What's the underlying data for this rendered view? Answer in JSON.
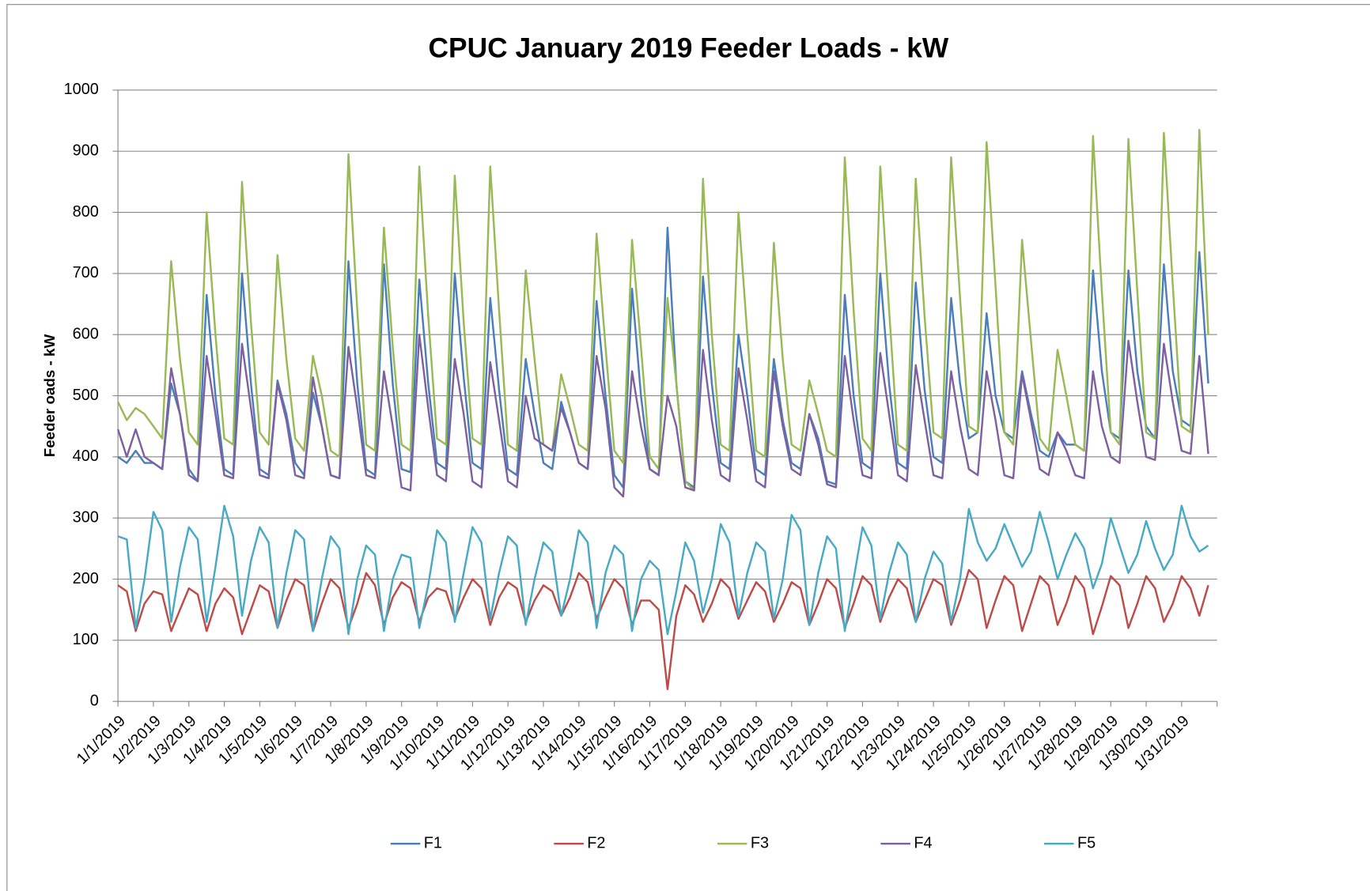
{
  "chart_data": {
    "type": "line",
    "title": "CPUC January 2019 Feeder Loads - kW",
    "y_label": "Feeder oads - kW",
    "categories": [
      "1/1/2019",
      "1/2/2019",
      "1/3/2019",
      "1/4/2019",
      "1/5/2019",
      "1/6/2019",
      "1/7/2019",
      "1/8/2019",
      "1/9/2019",
      "1/10/2019",
      "1/11/2019",
      "1/12/2019",
      "1/13/2019",
      "1/14/2019",
      "1/15/2019",
      "1/16/2019",
      "1/17/2019",
      "1/18/2019",
      "1/19/2019",
      "1/20/2019",
      "1/21/2019",
      "1/22/2019",
      "1/23/2019",
      "1/24/2019",
      "1/25/2019",
      "1/26/2019",
      "1/27/2019",
      "1/28/2019",
      "1/29/2019",
      "1/30/2019",
      "1/31/2019"
    ],
    "ylim": [
      0,
      1000
    ],
    "yticks": [
      0,
      100,
      200,
      300,
      400,
      500,
      600,
      700,
      800,
      900,
      1000
    ],
    "grid": true,
    "legend": "bottom",
    "series": [
      {
        "name": "F1",
        "color": "#4a7ebb",
        "values": [
          [
            400,
            390,
            410,
            390
          ],
          [
            390,
            380,
            520,
            470
          ],
          [
            380,
            360,
            665,
            500
          ],
          [
            380,
            370,
            700,
            520
          ],
          [
            380,
            370,
            525,
            470
          ],
          [
            390,
            370,
            505,
            450
          ],
          [
            370,
            365,
            720,
            520
          ],
          [
            380,
            370,
            715,
            520
          ],
          [
            380,
            375,
            690,
            520
          ],
          [
            390,
            380,
            700,
            530
          ],
          [
            390,
            380,
            660,
            510
          ],
          [
            380,
            370,
            560,
            470
          ],
          [
            390,
            380,
            490,
            440
          ],
          [
            390,
            380,
            655,
            500
          ],
          [
            370,
            350,
            675,
            500
          ],
          [
            380,
            370,
            775,
            520
          ],
          [
            360,
            350,
            695,
            520
          ],
          [
            390,
            380,
            600,
            500
          ],
          [
            380,
            370,
            560,
            460
          ],
          [
            390,
            380,
            470,
            430
          ],
          [
            360,
            355,
            665,
            500
          ],
          [
            390,
            380,
            700,
            520
          ],
          [
            390,
            380,
            685,
            510
          ],
          [
            400,
            390,
            660,
            520
          ],
          [
            430,
            440,
            635,
            500
          ],
          [
            440,
            430,
            540,
            470
          ],
          [
            410,
            400,
            440,
            420
          ],
          [
            420,
            410,
            705,
            540
          ],
          [
            440,
            430,
            705,
            540
          ],
          [
            450,
            430,
            715,
            540
          ],
          [
            460,
            450,
            735,
            520
          ]
        ]
      },
      {
        "name": "F2",
        "color": "#be4b48",
        "values": [
          [
            190,
            180,
            115,
            160
          ],
          [
            180,
            175,
            115,
            150
          ],
          [
            185,
            175,
            115,
            160
          ],
          [
            185,
            170,
            110,
            150
          ],
          [
            190,
            180,
            120,
            165
          ],
          [
            200,
            190,
            115,
            160
          ],
          [
            200,
            185,
            120,
            160
          ],
          [
            210,
            190,
            125,
            170
          ],
          [
            195,
            185,
            130,
            170
          ],
          [
            185,
            180,
            135,
            170
          ],
          [
            200,
            185,
            125,
            170
          ],
          [
            195,
            185,
            130,
            165
          ],
          [
            190,
            180,
            140,
            170
          ],
          [
            210,
            195,
            135,
            170
          ],
          [
            200,
            185,
            125,
            165
          ],
          [
            165,
            150,
            20,
            140
          ],
          [
            190,
            175,
            130,
            160
          ],
          [
            200,
            185,
            135,
            165
          ],
          [
            195,
            180,
            130,
            160
          ],
          [
            195,
            185,
            125,
            160
          ],
          [
            200,
            185,
            120,
            160
          ],
          [
            205,
            190,
            130,
            170
          ],
          [
            200,
            185,
            130,
            165
          ],
          [
            200,
            190,
            125,
            165
          ],
          [
            215,
            200,
            120,
            165
          ],
          [
            205,
            190,
            115,
            160
          ],
          [
            205,
            190,
            125,
            160
          ],
          [
            205,
            185,
            110,
            155
          ],
          [
            205,
            190,
            120,
            160
          ],
          [
            205,
            185,
            130,
            160
          ],
          [
            205,
            185,
            140,
            190
          ]
        ]
      },
      {
        "name": "F3",
        "color": "#98b954",
        "values": [
          [
            490,
            460,
            480,
            470
          ],
          [
            450,
            430,
            720,
            560
          ],
          [
            440,
            420,
            800,
            600
          ],
          [
            430,
            420,
            850,
            620
          ],
          [
            440,
            420,
            730,
            560
          ],
          [
            430,
            410,
            565,
            500
          ],
          [
            410,
            400,
            895,
            640
          ],
          [
            420,
            410,
            775,
            580
          ],
          [
            420,
            410,
            875,
            630
          ],
          [
            430,
            420,
            860,
            620
          ],
          [
            430,
            420,
            875,
            640
          ],
          [
            420,
            410,
            705,
            560
          ],
          [
            420,
            410,
            535,
            480
          ],
          [
            420,
            410,
            765,
            580
          ],
          [
            410,
            390,
            755,
            580
          ],
          [
            400,
            380,
            660,
            520
          ],
          [
            360,
            345,
            855,
            600
          ],
          [
            420,
            410,
            800,
            600
          ],
          [
            410,
            400,
            750,
            560
          ],
          [
            420,
            410,
            525,
            470
          ],
          [
            410,
            400,
            890,
            640
          ],
          [
            430,
            410,
            875,
            640
          ],
          [
            420,
            410,
            855,
            630
          ],
          [
            440,
            430,
            890,
            660
          ],
          [
            450,
            440,
            915,
            680
          ],
          [
            440,
            420,
            755,
            590
          ],
          [
            430,
            410,
            575,
            500
          ],
          [
            420,
            410,
            925,
            670
          ],
          [
            440,
            420,
            920,
            670
          ],
          [
            440,
            430,
            930,
            680
          ],
          [
            450,
            440,
            935,
            600
          ]
        ]
      },
      {
        "name": "F4",
        "color": "#7d60a0",
        "values": [
          [
            445,
            400,
            445,
            400
          ],
          [
            390,
            380,
            545,
            470
          ],
          [
            370,
            360,
            565,
            470
          ],
          [
            370,
            365,
            585,
            480
          ],
          [
            370,
            365,
            520,
            460
          ],
          [
            370,
            365,
            530,
            450
          ],
          [
            370,
            365,
            580,
            480
          ],
          [
            370,
            365,
            540,
            450
          ],
          [
            350,
            345,
            600,
            480
          ],
          [
            370,
            360,
            560,
            470
          ],
          [
            360,
            350,
            555,
            460
          ],
          [
            360,
            350,
            500,
            430
          ],
          [
            420,
            410,
            480,
            440
          ],
          [
            390,
            380,
            565,
            480
          ],
          [
            350,
            335,
            540,
            450
          ],
          [
            380,
            370,
            500,
            450
          ],
          [
            350,
            345,
            575,
            460
          ],
          [
            370,
            360,
            545,
            460
          ],
          [
            360,
            350,
            540,
            450
          ],
          [
            380,
            370,
            470,
            420
          ],
          [
            355,
            350,
            565,
            460
          ],
          [
            370,
            365,
            570,
            470
          ],
          [
            370,
            360,
            550,
            460
          ],
          [
            370,
            365,
            540,
            450
          ],
          [
            380,
            370,
            540,
            460
          ],
          [
            370,
            365,
            535,
            460
          ],
          [
            380,
            370,
            440,
            410
          ],
          [
            370,
            365,
            540,
            450
          ],
          [
            400,
            390,
            590,
            490
          ],
          [
            400,
            395,
            585,
            490
          ],
          [
            410,
            405,
            565,
            405
          ]
        ]
      },
      {
        "name": "F5",
        "color": "#46aac5",
        "values": [
          [
            270,
            265,
            120,
            200
          ],
          [
            310,
            280,
            130,
            220
          ],
          [
            285,
            265,
            130,
            220
          ],
          [
            320,
            270,
            140,
            230
          ],
          [
            285,
            260,
            120,
            210
          ],
          [
            280,
            265,
            115,
            200
          ],
          [
            270,
            250,
            110,
            200
          ],
          [
            255,
            240,
            115,
            200
          ],
          [
            240,
            235,
            120,
            190
          ],
          [
            280,
            260,
            130,
            210
          ],
          [
            285,
            260,
            135,
            210
          ],
          [
            270,
            255,
            125,
            200
          ],
          [
            260,
            245,
            140,
            200
          ],
          [
            280,
            260,
            120,
            210
          ],
          [
            255,
            240,
            115,
            200
          ],
          [
            230,
            215,
            110,
            180
          ],
          [
            260,
            230,
            145,
            200
          ],
          [
            290,
            260,
            140,
            210
          ],
          [
            260,
            245,
            135,
            200
          ],
          [
            305,
            280,
            125,
            210
          ],
          [
            270,
            250,
            115,
            200
          ],
          [
            285,
            255,
            135,
            210
          ],
          [
            260,
            240,
            130,
            200
          ],
          [
            245,
            225,
            130,
            200
          ],
          [
            315,
            260,
            230,
            250
          ],
          [
            290,
            255,
            220,
            245
          ],
          [
            310,
            260,
            200,
            240
          ],
          [
            275,
            250,
            185,
            225
          ],
          [
            300,
            255,
            210,
            240
          ],
          [
            295,
            250,
            215,
            240
          ],
          [
            320,
            270,
            245,
            255
          ]
        ]
      }
    ]
  }
}
